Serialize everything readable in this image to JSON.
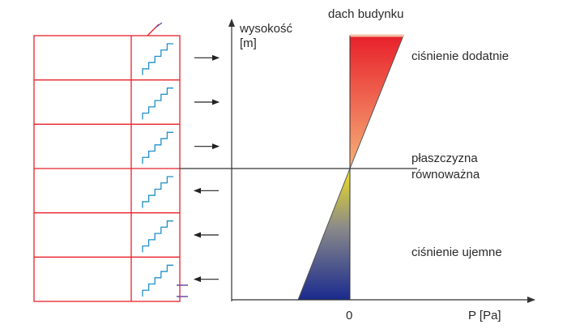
{
  "labels": {
    "roof": "dach budynku",
    "yaxis_line1": "wysokość",
    "yaxis_line2": "[m]",
    "positive": "ciśnienie dodatnie",
    "neutral_line1": "płaszczyzna",
    "neutral_line2": "równoważna",
    "negative": "ciśnienie ujemne",
    "xaxis": "P [Pa]",
    "zero": "0"
  },
  "building": {
    "floors": 6,
    "airflow": [
      "inward",
      "inward",
      "inward",
      "outward",
      "outward",
      "outward"
    ]
  },
  "colors": {
    "building": "#e8202a",
    "stairs": "#1e90c8",
    "axis": "#333333",
    "arrow": "#222222",
    "positive_top": "#e8202a",
    "positive_bottom": "#f6b27a",
    "negative_top": "#f0e020",
    "negative_bottom": "#1a2a8e"
  }
}
